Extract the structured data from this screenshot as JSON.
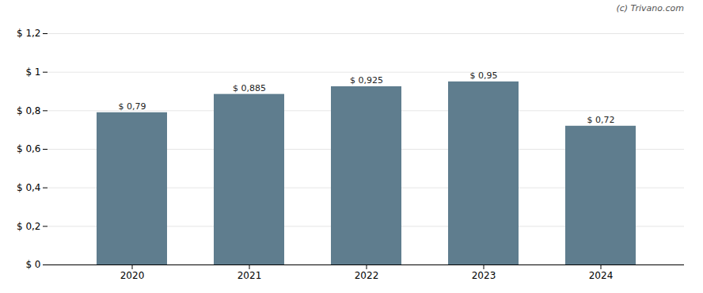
{
  "chart_data": {
    "type": "bar",
    "categories": [
      "2020",
      "2021",
      "2022",
      "2023",
      "2024"
    ],
    "values": [
      0.79,
      0.885,
      0.925,
      0.95,
      0.72
    ],
    "value_labels": [
      "$ 0,79",
      "$ 0,885",
      "$ 0,925",
      "$ 0,95",
      "$ 0,72"
    ],
    "data_labels": true,
    "color": "#5f7d8e",
    "ylim": [
      0,
      1.2
    ],
    "yticks": [
      {
        "value": 0,
        "label": "$ 0"
      },
      {
        "value": 0.2,
        "label": "$ 0,2"
      },
      {
        "value": 0.4,
        "label": "$ 0,4"
      },
      {
        "value": 0.6,
        "label": "$ 0,6"
      },
      {
        "value": 0.8,
        "label": "$ 0,8"
      },
      {
        "value": 1.0,
        "label": "$ 1"
      },
      {
        "value": 1.2,
        "label": "$ 1,2"
      }
    ],
    "grid": true,
    "annotations": [
      "(c) Trivano.com"
    ]
  }
}
